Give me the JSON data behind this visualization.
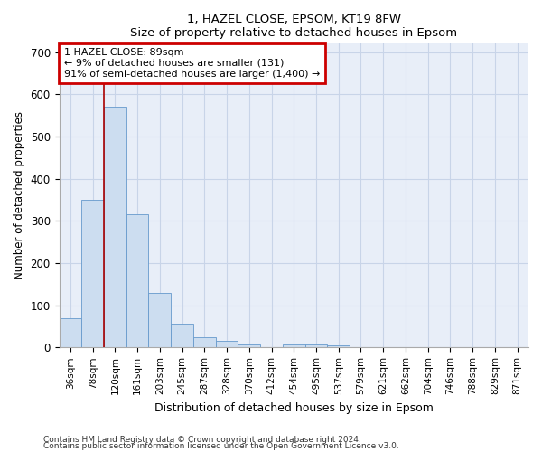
{
  "title1": "1, HAZEL CLOSE, EPSOM, KT19 8FW",
  "title2": "Size of property relative to detached houses in Epsom",
  "xlabel": "Distribution of detached houses by size in Epsom",
  "ylabel": "Number of detached properties",
  "bar_color": "#ccddf0",
  "bar_edge_color": "#6699cc",
  "bar_width": 1.0,
  "categories": [
    "36sqm",
    "78sqm",
    "120sqm",
    "161sqm",
    "203sqm",
    "245sqm",
    "287sqm",
    "328sqm",
    "370sqm",
    "412sqm",
    "454sqm",
    "495sqm",
    "537sqm",
    "579sqm",
    "621sqm",
    "662sqm",
    "704sqm",
    "746sqm",
    "788sqm",
    "829sqm",
    "871sqm"
  ],
  "values": [
    70,
    350,
    570,
    315,
    130,
    57,
    25,
    15,
    8,
    0,
    8,
    8,
    5,
    0,
    0,
    0,
    0,
    0,
    0,
    0,
    0
  ],
  "ylim": [
    0,
    720
  ],
  "yticks": [
    0,
    100,
    200,
    300,
    400,
    500,
    600,
    700
  ],
  "property_line_x": 1.5,
  "annotation_text": "1 HAZEL CLOSE: 89sqm\n← 9% of detached houses are smaller (131)\n91% of semi-detached houses are larger (1,400) →",
  "annotation_box_color": "#ffffff",
  "annotation_box_edgecolor": "#cc0000",
  "footnote1": "Contains HM Land Registry data © Crown copyright and database right 2024.",
  "footnote2": "Contains public sector information licensed under the Open Government Licence v3.0.",
  "grid_color": "#c8d4e8",
  "background_color": "#e8eef8"
}
